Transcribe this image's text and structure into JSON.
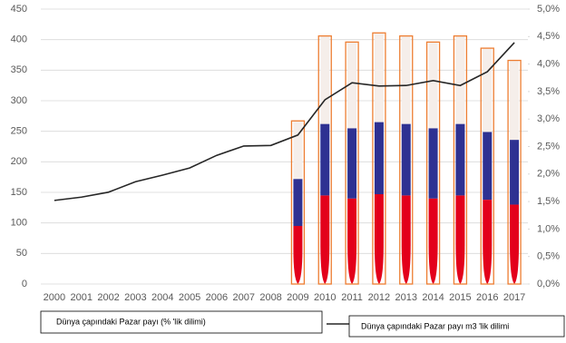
{
  "chart_data": {
    "type": "combo",
    "categories": [
      "2000",
      "2001",
      "2002",
      "2003",
      "2004",
      "2005",
      "2006",
      "2007",
      "2008",
      "2009",
      "2010",
      "2011",
      "2012",
      "2013",
      "2014",
      "2015",
      "2016",
      "2017"
    ],
    "ylim": [
      0,
      450
    ],
    "yticks": [
      0,
      50,
      100,
      150,
      200,
      250,
      300,
      350,
      400,
      450
    ],
    "y2lim": [
      0,
      5
    ],
    "y2ticks": [
      {
        "value": 0,
        "label": "0,0%"
      },
      {
        "value": 0.5,
        "label": "0,5%"
      },
      {
        "value": 1,
        "label": "1,0%"
      },
      {
        "value": 1.5,
        "label": "1,5%"
      },
      {
        "value": 2,
        "label": "2,0%"
      },
      {
        "value": 2.5,
        "label": "2,5%"
      },
      {
        "value": 3,
        "label": "3,0%"
      },
      {
        "value": 3.5,
        "label": "3,5%"
      },
      {
        "value": 4,
        "label": "4,0%"
      },
      {
        "value": 4.5,
        "label": "4,5%"
      },
      {
        "value": 5,
        "label": "5,0%"
      }
    ],
    "grid": true,
    "series": [
      {
        "name": "Dünya çapındaki Pazar payı (% 'lik dilimi)",
        "type": "line",
        "axis": "y2",
        "color": "#262626",
        "values": [
          1.52,
          1.58,
          1.67,
          1.86,
          1.98,
          2.11,
          2.34,
          2.51,
          2.52,
          2.71,
          3.35,
          3.66,
          3.6,
          3.61,
          3.7,
          3.61,
          3.86,
          4.39
        ]
      }
    ],
    "stack": {
      "name": "Dünya çapındaki Pazar payı m3 'lik dilimi",
      "type": "bar",
      "outline": "#ed7d31",
      "segments": [
        {
          "color": "#e3001b",
          "values": [
            null,
            null,
            null,
            null,
            null,
            null,
            null,
            null,
            null,
            95,
            145,
            140,
            147,
            145,
            140,
            145,
            138,
            130
          ]
        },
        {
          "color": "#2e3192",
          "values": [
            null,
            null,
            null,
            null,
            null,
            null,
            null,
            null,
            null,
            77,
            117,
            115,
            118,
            117,
            115,
            117,
            111,
            106
          ]
        },
        {
          "color": "#f5eeea",
          "values": [
            null,
            null,
            null,
            null,
            null,
            null,
            null,
            null,
            null,
            95,
            144,
            141,
            146,
            144,
            141,
            144,
            137,
            130
          ]
        }
      ]
    }
  }
}
